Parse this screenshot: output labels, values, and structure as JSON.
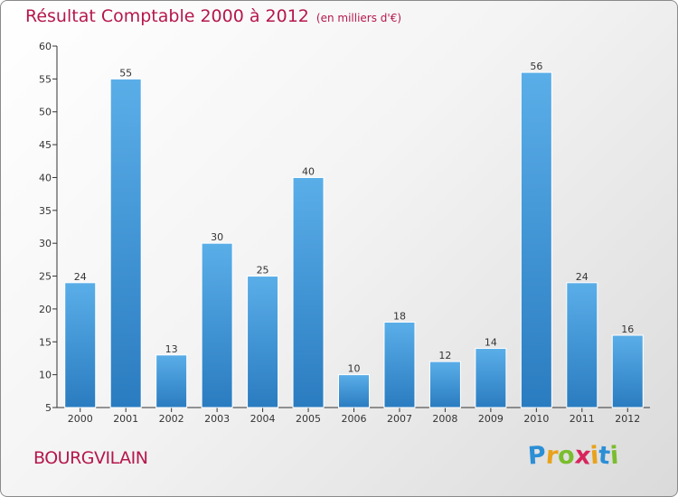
{
  "chart_data": {
    "type": "bar",
    "title": "Résultat Comptable 2000 à 2012",
    "subtitle": "(en milliers d'€)",
    "categories": [
      "2000",
      "2001",
      "2002",
      "2003",
      "2004",
      "2005",
      "2006",
      "2007",
      "2008",
      "2009",
      "2010",
      "2011",
      "2012"
    ],
    "values": [
      24,
      55,
      13,
      30,
      25,
      40,
      10,
      18,
      12,
      14,
      56,
      24,
      16
    ],
    "ylim": [
      5,
      60
    ],
    "yticks": [
      5,
      10,
      15,
      20,
      25,
      30,
      35,
      40,
      45,
      50,
      55,
      60
    ],
    "grid": false,
    "xlabel": "",
    "ylabel": ""
  },
  "location": "BOURGVILAIN",
  "logo": {
    "letters": [
      "P",
      "r",
      "o",
      "x",
      "i",
      "t",
      "i"
    ],
    "colors": [
      "#2c8fd6",
      "#e8a21b",
      "#7bbd2e",
      "#d8245c",
      "#e8a21b",
      "#2c8fd6",
      "#7bbd2e"
    ]
  },
  "colors": {
    "bar_light": "#5aaee8",
    "bar_dark": "#2a7cc0",
    "title": "#b5174d"
  }
}
